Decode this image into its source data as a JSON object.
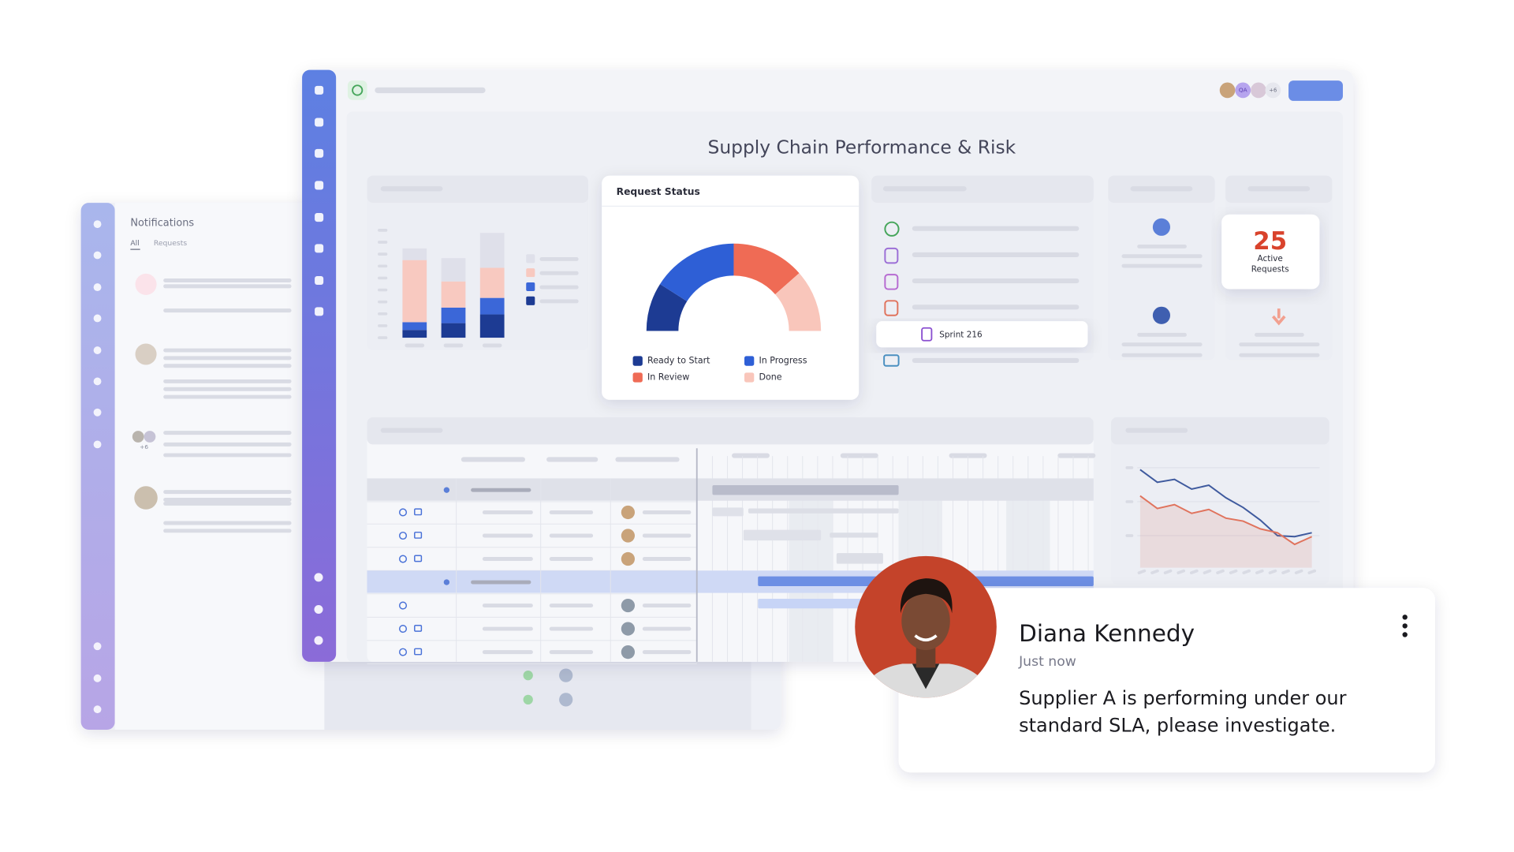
{
  "notifications_panel": {
    "title": "Notifications",
    "tabs": [
      "All",
      "Requests"
    ],
    "more_badge": "+6"
  },
  "dashboard": {
    "title": "Supply Chain Performance & Risk",
    "avatar_initials": "QA",
    "avatar_more": "+6",
    "list_item": "Sprint 216",
    "kpi": {
      "value": "25",
      "label": "Active Requests"
    }
  },
  "chart_data": [
    {
      "type": "bar",
      "stacked": true,
      "ylim": [
        0,
        116
      ],
      "series": [
        {
          "color": "#1d3b93",
          "values": [
            8,
            15,
            24
          ]
        },
        {
          "color": "#3b67d8",
          "values": [
            8,
            16,
            17
          ]
        },
        {
          "color": "#f8c9c0",
          "values": [
            64,
            27,
            31
          ]
        },
        {
          "color": "#dfe0ea",
          "values": [
            12,
            24,
            36
          ]
        }
      ]
    },
    {
      "type": "pie",
      "half": true,
      "title": "Request Status",
      "categories": [
        "Ready to Start",
        "In Progress",
        "In Review",
        "Done"
      ],
      "values": [
        18,
        32,
        27,
        23
      ],
      "colors": [
        "#1d3b93",
        "#2e5fd6",
        "#ef6b55",
        "#f9c6bb"
      ]
    },
    {
      "type": "line",
      "ylim": [
        0,
        105
      ],
      "grid": true,
      "series": [
        {
          "color": "#3f5a9e",
          "values": [
            101,
            88,
            91,
            81,
            85,
            72,
            62,
            49,
            33,
            32,
            36
          ]
        },
        {
          "color": "#e0735d",
          "area": true,
          "values": [
            74,
            61,
            65,
            56,
            60,
            51,
            48,
            40,
            36,
            24,
            32
          ]
        }
      ]
    }
  ],
  "notification_card": {
    "name": "Diana Kennedy",
    "time": "Just now",
    "message": "Supplier A is performing under our standard SLA, please investigate."
  }
}
